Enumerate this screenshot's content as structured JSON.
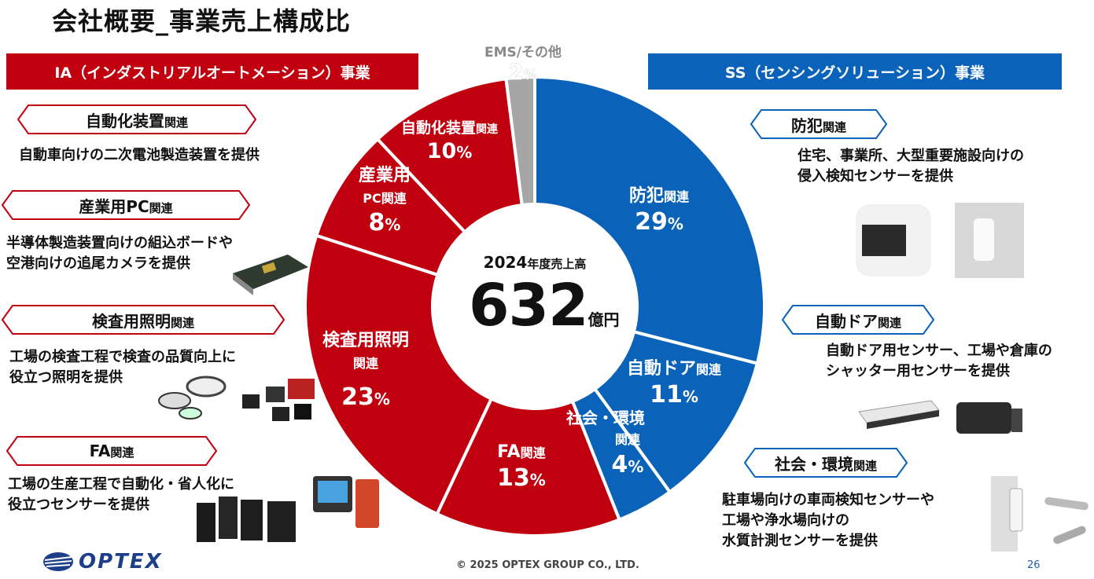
{
  "title": "会社概要_事業売上構成比",
  "ia_banner": "IA（インダストリアルオートメーション）事業",
  "ss_banner": "SS（センシングソリューション）事業",
  "left_items": [
    {
      "name": "自動化装置",
      "suffix": "関連",
      "desc": [
        "自動車向けの二次電池製造装置を提供"
      ]
    },
    {
      "name": "産業用PC",
      "suffix": "関連",
      "desc": [
        "半導体製造装置向けの組込ボードや",
        "空港向けの追尾カメラを提供"
      ]
    },
    {
      "name": "検査用照明",
      "suffix": "関連",
      "desc": [
        "工場の検査工程で検査の品質向上に",
        "役立つ照明を提供"
      ]
    },
    {
      "name": "FA",
      "suffix": "関連",
      "desc": [
        "工場の生産工程で自動化・省人化に",
        "役立つセンサーを提供"
      ]
    }
  ],
  "right_items": [
    {
      "name": "防犯",
      "suffix": "関連",
      "desc": [
        "住宅、事業所、大型重要施設向けの",
        "侵入検知センサーを提供"
      ]
    },
    {
      "name": "自動ドア",
      "suffix": "関連",
      "desc": [
        "自動ドア用センサー、工場や倉庫の",
        "シャッター用センサーを提供"
      ]
    },
    {
      "name": "社会・環境",
      "suffix": "関連",
      "desc": [
        "駐車場向けの車両検知センサーや",
        "工場や浄水場向けの",
        "水質計測センサーを提供"
      ]
    }
  ],
  "center": {
    "caption": "2024年度売上高",
    "caption_small": "年度売上高",
    "year": "2024",
    "value": "632",
    "unit": "億円"
  },
  "footer": {
    "copyright": "© 2025 OPTEX GROUP CO., LTD.",
    "page": "26",
    "logo": "OPTEX"
  },
  "colors": {
    "ia": "#c0000f",
    "ss": "#0b63b9",
    "ems": "#a6a6a6"
  },
  "chart_data": {
    "type": "pie",
    "title": "",
    "segments": [
      {
        "name": "防犯",
        "suffix": "関連",
        "value": 29,
        "group": "SS"
      },
      {
        "name": "自動ドア",
        "suffix": "関連",
        "value": 11,
        "group": "SS"
      },
      {
        "name": "社会・環境",
        "suffix": "関連",
        "value": 4,
        "group": "SS"
      },
      {
        "name": "FA",
        "suffix": "関連",
        "value": 13,
        "group": "IA"
      },
      {
        "name": "検査用照明",
        "suffix": "関連",
        "value": 23,
        "group": "IA"
      },
      {
        "name": "産業用PC",
        "suffix": "関連",
        "value": 8,
        "group": "IA"
      },
      {
        "name": "自動化装置",
        "suffix": "関連",
        "value": 10,
        "group": "IA"
      },
      {
        "name": "EMS/その他",
        "suffix": "",
        "value": 2,
        "group": "EMS"
      }
    ],
    "unit": "%"
  }
}
